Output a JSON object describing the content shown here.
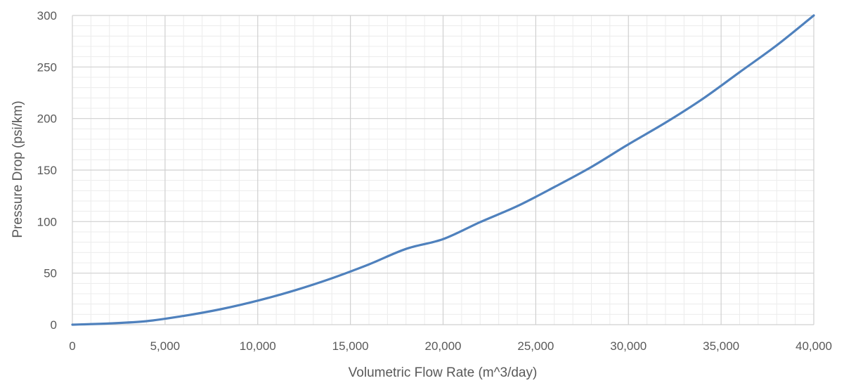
{
  "chart_data": {
    "type": "line",
    "title": "",
    "xlabel": "Volumetric Flow Rate (m^3/day)",
    "ylabel": "Pressure Drop (psi/km)",
    "xlim": [
      0,
      40000
    ],
    "ylim": [
      0,
      300
    ],
    "x_ticks": [
      0,
      5000,
      10000,
      15000,
      20000,
      25000,
      30000,
      35000,
      40000
    ],
    "x_tick_labels": [
      "0",
      "5,000",
      "10,000",
      "15,000",
      "20,000",
      "25,000",
      "30,000",
      "35,000",
      "40,000"
    ],
    "y_ticks": [
      0,
      50,
      100,
      150,
      200,
      250,
      300
    ],
    "y_tick_labels": [
      "0",
      "50",
      "100",
      "150",
      "200",
      "250",
      "300"
    ],
    "grid": true,
    "minor_grid": true,
    "legend": "none",
    "series": [
      {
        "color": "#4f81bd",
        "x": [
          0,
          2000,
          4000,
          6000,
          8000,
          10000,
          12000,
          14000,
          16000,
          18000,
          20000,
          22000,
          24000,
          26000,
          28000,
          30000,
          32000,
          34000,
          36000,
          38000,
          40000
        ],
        "values": [
          0,
          1.2,
          3.4,
          8.5,
          15,
          23.3,
          33.3,
          45,
          58.5,
          73.5,
          83,
          99.5,
          115,
          133.5,
          153,
          175,
          196,
          219,
          245,
          271,
          300
        ]
      }
    ]
  }
}
